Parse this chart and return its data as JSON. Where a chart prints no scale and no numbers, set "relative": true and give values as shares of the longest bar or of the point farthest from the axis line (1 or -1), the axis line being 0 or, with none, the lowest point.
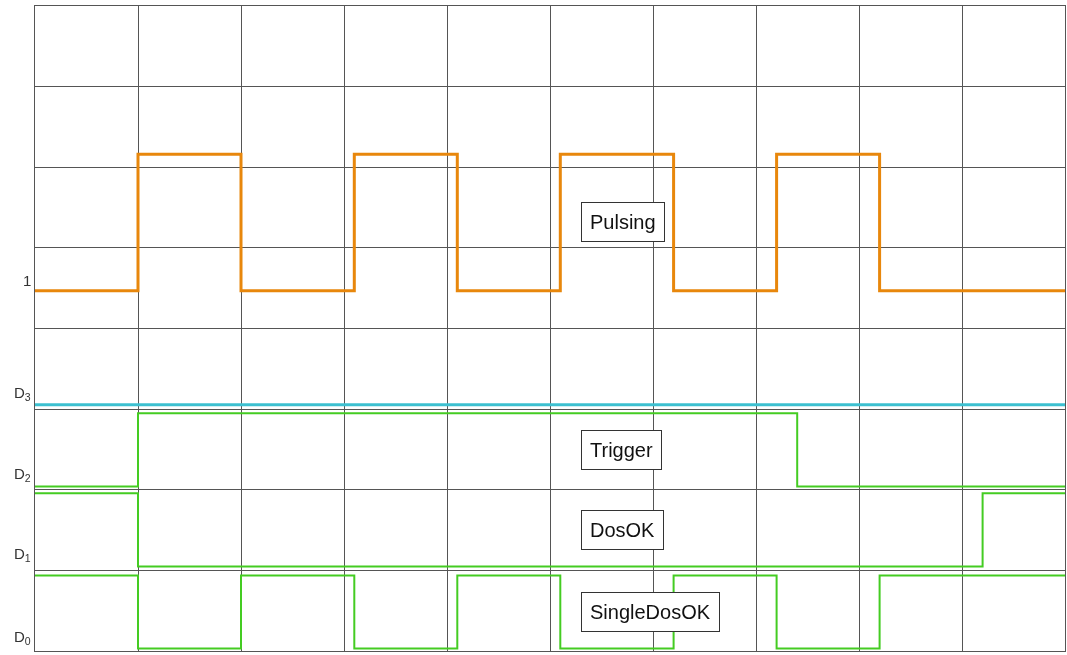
{
  "chart_data": {
    "type": "step",
    "relative": true,
    "categories": [
      null,
      null,
      null,
      null,
      null,
      null,
      null,
      null,
      null,
      null,
      null,
      null,
      null,
      null,
      null,
      null,
      null,
      null,
      null,
      null,
      null,
      null,
      null,
      null,
      null,
      null,
      null,
      null,
      null,
      null,
      null,
      null,
      null,
      null,
      null,
      null,
      null,
      null,
      null,
      null,
      null,
      null,
      null,
      null,
      null,
      null,
      null,
      null,
      null,
      null,
      null,
      null,
      null,
      null,
      null,
      null,
      null,
      null,
      null,
      null,
      null,
      null,
      null,
      null,
      null,
      null,
      null,
      null,
      null,
      null,
      null,
      null,
      null,
      null,
      null,
      null,
      null,
      null,
      null,
      null,
      null,
      null,
      null,
      null,
      null,
      null,
      null,
      null,
      null,
      null,
      null,
      null,
      null,
      null,
      null,
      null,
      null,
      null,
      null,
      null,
      null
    ],
    "grid": true,
    "legend": false,
    "marker": "none",
    "line_style": "solid",
    "series": [
      {
        "name": "Pulsing",
        "color": "#e8870c",
        "values": [
          0.724,
          0.724,
          0.724,
          0.724,
          0.724,
          0.724,
          0.724,
          0.724,
          0.724,
          0.724,
          1,
          1,
          1,
          1,
          1,
          1,
          1,
          1,
          1,
          1,
          0.724,
          0.724,
          0.724,
          0.724,
          0.724,
          0.724,
          0.724,
          0.724,
          0.724,
          0.724,
          0.724,
          1,
          1,
          1,
          1,
          1,
          1,
          1,
          1,
          1,
          1,
          0.724,
          0.724,
          0.724,
          0.724,
          0.724,
          0.724,
          0.724,
          0.724,
          0.724,
          0.724,
          1,
          1,
          1,
          1,
          1,
          1,
          1,
          1,
          1,
          1,
          1,
          0.724,
          0.724,
          0.724,
          0.724,
          0.724,
          0.724,
          0.724,
          0.724,
          0.724,
          0.724,
          1,
          1,
          1,
          1,
          1,
          1,
          1,
          1,
          1,
          1,
          0.724,
          0.724,
          0.724,
          0.724,
          0.724,
          0.724,
          0.724,
          0.724,
          0.724,
          0.724,
          0.724,
          0.724,
          0.724,
          0.724,
          0.724,
          0.724,
          0.724,
          0.724,
          0.724
        ]
      },
      {
        "color": "#3cc0d0",
        "values": [
          0.493,
          0.493,
          0.493,
          0.493,
          0.493,
          0.493,
          0.493,
          0.493,
          0.493,
          0.493,
          0.493,
          0.493,
          0.493,
          0.493,
          0.493,
          0.493,
          0.493,
          0.493,
          0.493,
          0.493,
          0.493,
          0.493,
          0.493,
          0.493,
          0.493,
          0.493,
          0.493,
          0.493,
          0.493,
          0.493,
          0.493,
          0.493,
          0.493,
          0.493,
          0.493,
          0.493,
          0.493,
          0.493,
          0.493,
          0.493,
          0.493,
          0.493,
          0.493,
          0.493,
          0.493,
          0.493,
          0.493,
          0.493,
          0.493,
          0.493,
          0.493,
          0.493,
          0.493,
          0.493,
          0.493,
          0.493,
          0.493,
          0.493,
          0.493,
          0.493,
          0.493,
          0.493,
          0.493,
          0.493,
          0.493,
          0.493,
          0.493,
          0.493,
          0.493,
          0.493,
          0.493,
          0.493,
          0.493,
          0.493,
          0.493,
          0.493,
          0.493,
          0.493,
          0.493,
          0.493,
          0.493,
          0.493,
          0.493,
          0.493,
          0.493,
          0.493,
          0.493,
          0.493,
          0.493,
          0.493,
          0.493,
          0.493,
          0.493,
          0.493,
          0.493,
          0.493,
          0.493,
          0.493,
          0.493,
          0.493,
          0.493
        ]
      },
      {
        "name": "Trigger",
        "color": "#44cc22",
        "values": [
          0.328,
          0.328,
          0.328,
          0.328,
          0.328,
          0.328,
          0.328,
          0.328,
          0.328,
          0.328,
          0.476,
          0.476,
          0.476,
          0.476,
          0.476,
          0.476,
          0.476,
          0.476,
          0.476,
          0.476,
          0.476,
          0.476,
          0.476,
          0.476,
          0.476,
          0.476,
          0.476,
          0.476,
          0.476,
          0.476,
          0.476,
          0.476,
          0.476,
          0.476,
          0.476,
          0.476,
          0.476,
          0.476,
          0.476,
          0.476,
          0.476,
          0.476,
          0.476,
          0.476,
          0.476,
          0.476,
          0.476,
          0.476,
          0.476,
          0.476,
          0.476,
          0.476,
          0.476,
          0.476,
          0.476,
          0.476,
          0.476,
          0.476,
          0.476,
          0.476,
          0.476,
          0.476,
          0.476,
          0.476,
          0.476,
          0.476,
          0.476,
          0.476,
          0.476,
          0.476,
          0.476,
          0.476,
          0.476,
          0.476,
          0.328,
          0.328,
          0.328,
          0.328,
          0.328,
          0.328,
          0.328,
          0.328,
          0.328,
          0.328,
          0.328,
          0.328,
          0.328,
          0.328,
          0.328,
          0.328,
          0.328,
          0.328,
          0.328,
          0.328,
          0.328,
          0.328,
          0.328,
          0.328,
          0.328,
          0.328,
          0.328
        ]
      },
      {
        "name": "DosOK",
        "color": "#44cc22",
        "values": [
          0.314,
          0.314,
          0.314,
          0.314,
          0.314,
          0.314,
          0.314,
          0.314,
          0.314,
          0.314,
          0.166,
          0.166,
          0.166,
          0.166,
          0.166,
          0.166,
          0.166,
          0.166,
          0.166,
          0.166,
          0.166,
          0.166,
          0.166,
          0.166,
          0.166,
          0.166,
          0.166,
          0.166,
          0.166,
          0.166,
          0.166,
          0.166,
          0.166,
          0.166,
          0.166,
          0.166,
          0.166,
          0.166,
          0.166,
          0.166,
          0.166,
          0.166,
          0.166,
          0.166,
          0.166,
          0.166,
          0.166,
          0.166,
          0.166,
          0.166,
          0.166,
          0.166,
          0.166,
          0.166,
          0.166,
          0.166,
          0.166,
          0.166,
          0.166,
          0.166,
          0.166,
          0.166,
          0.166,
          0.166,
          0.166,
          0.166,
          0.166,
          0.166,
          0.166,
          0.166,
          0.166,
          0.166,
          0.166,
          0.166,
          0.166,
          0.166,
          0.166,
          0.166,
          0.166,
          0.166,
          0.166,
          0.166,
          0.166,
          0.166,
          0.166,
          0.166,
          0.166,
          0.166,
          0.166,
          0.166,
          0.166,
          0.166,
          0.314,
          0.314,
          0.314,
          0.314,
          0.314,
          0.314,
          0.314,
          0.314,
          0.314
        ]
      },
      {
        "name": "SingleDosOK",
        "color": "#44cc22",
        "values": [
          0.148,
          0.148,
          0.148,
          0.148,
          0.148,
          0.148,
          0.148,
          0.148,
          0.148,
          0.148,
          0,
          0,
          0,
          0,
          0,
          0,
          0,
          0,
          0,
          0,
          0.148,
          0.148,
          0.148,
          0.148,
          0.148,
          0.148,
          0.148,
          0.148,
          0.148,
          0.148,
          0.148,
          0,
          0,
          0,
          0,
          0,
          0,
          0,
          0,
          0,
          0,
          0.148,
          0.148,
          0.148,
          0.148,
          0.148,
          0.148,
          0.148,
          0.148,
          0.148,
          0.148,
          0,
          0,
          0,
          0,
          0,
          0,
          0,
          0,
          0,
          0,
          0,
          0.148,
          0.148,
          0.148,
          0.148,
          0.148,
          0.148,
          0.148,
          0.148,
          0.148,
          0.148,
          0,
          0,
          0,
          0,
          0,
          0,
          0,
          0,
          0,
          0,
          0.148,
          0.148,
          0.148,
          0.148,
          0.148,
          0.148,
          0.148,
          0.148,
          0.148,
          0.148,
          0.148,
          0.148,
          0.148,
          0.148,
          0.148,
          0.148,
          0.148,
          0.148,
          0.148
        ]
      }
    ],
    "annotations": [
      "1",
      "D$_{3}$",
      "D$_{2}$",
      "D$_{1}$",
      "D$_{0}$"
    ]
  }
}
